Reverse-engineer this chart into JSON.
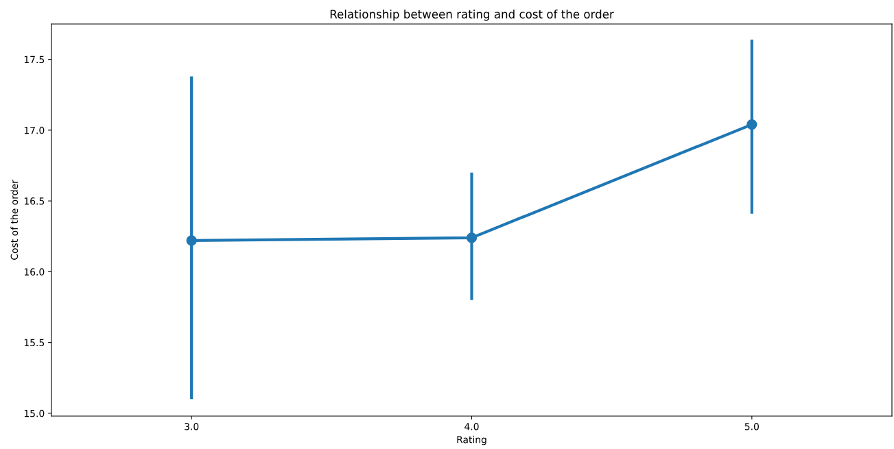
{
  "chart_data": {
    "type": "line",
    "title": "Relationship between rating and cost of the order",
    "xlabel": "Rating",
    "ylabel": "Cost of the order",
    "categories": [
      "3.0",
      "4.0",
      "5.0"
    ],
    "series": [
      {
        "color": "#1f77b4",
        "values": [
          16.22,
          16.24,
          17.04
        ],
        "errors": [
          [
            15.1,
            17.38
          ],
          [
            15.8,
            16.7
          ],
          [
            16.41,
            17.64
          ]
        ]
      }
    ],
    "ylim": [
      14.98,
      17.75
    ],
    "yticks": [
      {
        "value": 15,
        "label": "15.0"
      },
      15.5,
      {
        "value": 16,
        "label": "16.0"
      },
      16.5,
      {
        "value": 17,
        "label": "17.0"
      },
      17.5
    ],
    "marker": "circle",
    "line_style": "solid",
    "grid": false,
    "legend": false
  }
}
